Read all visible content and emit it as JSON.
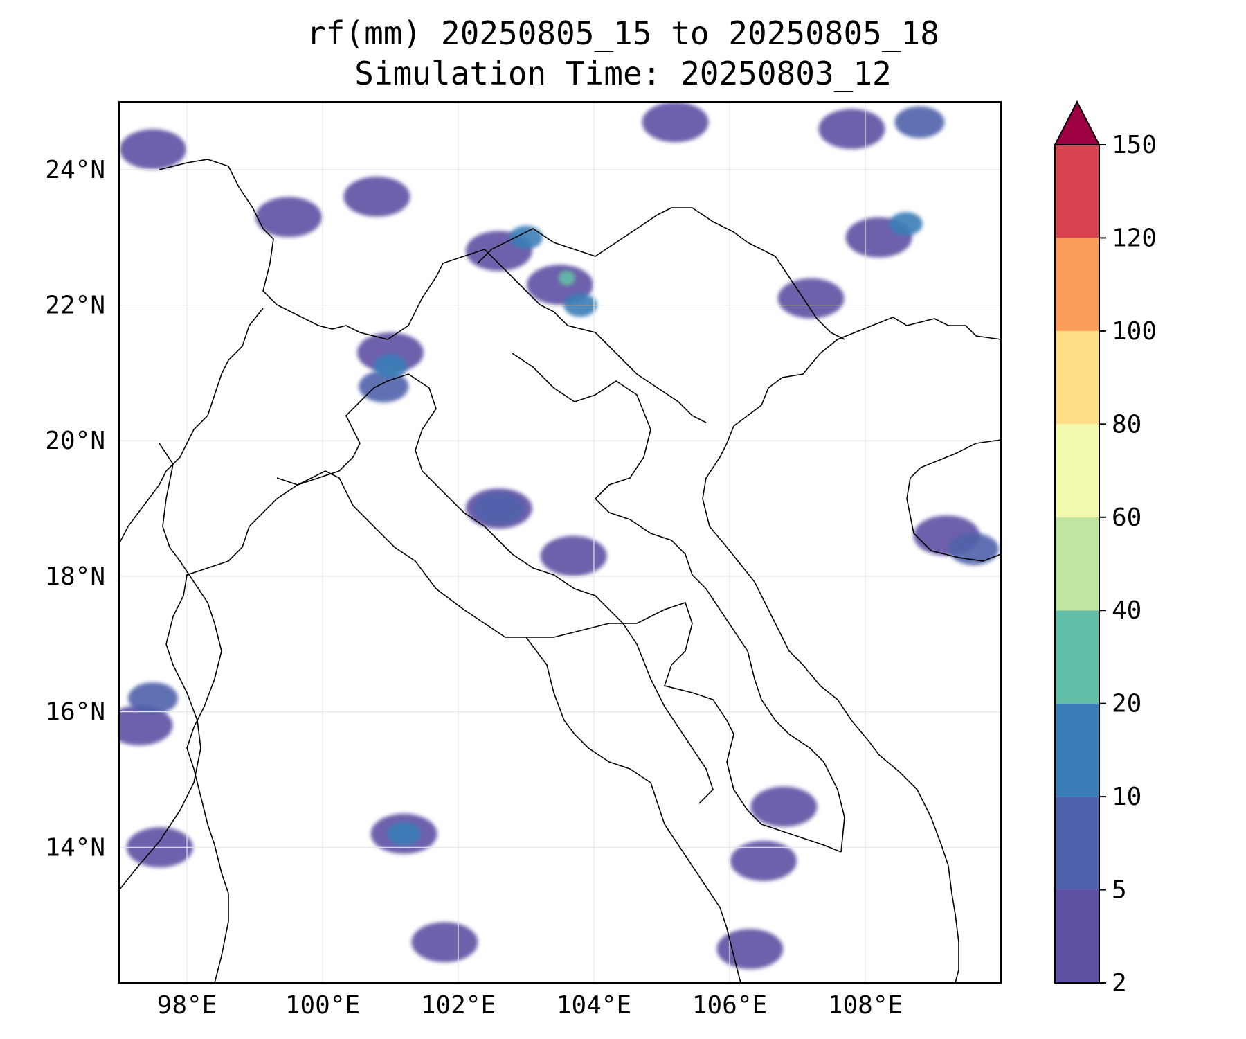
{
  "title": {
    "line1": "rf(mm) 20250805_15 to 20250805_18",
    "line2": "Simulation Time: 20250803_12"
  },
  "map": {
    "lon_range": [
      97,
      110
    ],
    "lat_range": [
      12,
      25
    ],
    "lon_ticks": [
      {
        "value": 98,
        "label": "98°E"
      },
      {
        "value": 100,
        "label": "100°E"
      },
      {
        "value": 102,
        "label": "102°E"
      },
      {
        "value": 104,
        "label": "104°E"
      },
      {
        "value": 106,
        "label": "106°E"
      },
      {
        "value": 108,
        "label": "108°E"
      }
    ],
    "lat_ticks": [
      {
        "value": 14,
        "label": "14°N"
      },
      {
        "value": 16,
        "label": "16°N"
      },
      {
        "value": 18,
        "label": "18°N"
      },
      {
        "value": 20,
        "label": "20°N"
      },
      {
        "value": 22,
        "label": "22°N"
      },
      {
        "value": 24,
        "label": "24°N"
      }
    ],
    "grid": true,
    "coastlines": true,
    "borders": true
  },
  "colorbar": {
    "levels": [
      2,
      5,
      10,
      20,
      40,
      60,
      80,
      100,
      120,
      150
    ],
    "labels": [
      "2",
      "5",
      "10",
      "20",
      "40",
      "60",
      "80",
      "100",
      "120",
      "150"
    ],
    "colors": [
      "#5e4fa2",
      "#4f62ab",
      "#3a7eb8",
      "#62bea6",
      "#bfe5a0",
      "#f2f9ac",
      "#fddd86",
      "#f99d59",
      "#d7434e"
    ],
    "extend_color": "#9e0142",
    "extend": "max",
    "orientation": "vertical"
  },
  "rain_cells": [
    {
      "lon": 97.5,
      "lat": 24.3,
      "level": 1
    },
    {
      "lon": 99.5,
      "lat": 23.3,
      "level": 1
    },
    {
      "lon": 100.8,
      "lat": 23.6,
      "level": 1
    },
    {
      "lon": 102.6,
      "lat": 22.8,
      "level": 1
    },
    {
      "lon": 103.0,
      "lat": 23.0,
      "level": 3
    },
    {
      "lon": 103.5,
      "lat": 22.3,
      "level": 1
    },
    {
      "lon": 103.8,
      "lat": 22.0,
      "level": 3
    },
    {
      "lon": 103.6,
      "lat": 22.4,
      "level": 4
    },
    {
      "lon": 101.0,
      "lat": 21.3,
      "level": 1
    },
    {
      "lon": 100.9,
      "lat": 20.8,
      "level": 2
    },
    {
      "lon": 101.0,
      "lat": 21.1,
      "level": 3
    },
    {
      "lon": 105.2,
      "lat": 24.7,
      "level": 1
    },
    {
      "lon": 107.8,
      "lat": 24.6,
      "level": 1
    },
    {
      "lon": 108.8,
      "lat": 24.7,
      "level": 2
    },
    {
      "lon": 108.2,
      "lat": 23.0,
      "level": 1
    },
    {
      "lon": 108.6,
      "lat": 23.2,
      "level": 3
    },
    {
      "lon": 107.2,
      "lat": 22.1,
      "level": 1
    },
    {
      "lon": 102.6,
      "lat": 19.0,
      "level": 1
    },
    {
      "lon": 102.6,
      "lat": 19.0,
      "level": 2
    },
    {
      "lon": 103.7,
      "lat": 18.3,
      "level": 1
    },
    {
      "lon": 109.2,
      "lat": 18.6,
      "level": 1
    },
    {
      "lon": 109.6,
      "lat": 18.4,
      "level": 2
    },
    {
      "lon": 97.3,
      "lat": 15.8,
      "level": 1
    },
    {
      "lon": 97.5,
      "lat": 16.2,
      "level": 2
    },
    {
      "lon": 97.6,
      "lat": 14.0,
      "level": 1
    },
    {
      "lon": 101.2,
      "lat": 14.2,
      "level": 1
    },
    {
      "lon": 101.2,
      "lat": 14.2,
      "level": 3
    },
    {
      "lon": 101.8,
      "lat": 12.6,
      "level": 1
    },
    {
      "lon": 106.8,
      "lat": 14.6,
      "level": 1
    },
    {
      "lon": 106.5,
      "lat": 13.8,
      "level": 1
    },
    {
      "lon": 106.3,
      "lat": 12.5,
      "level": 1
    }
  ]
}
